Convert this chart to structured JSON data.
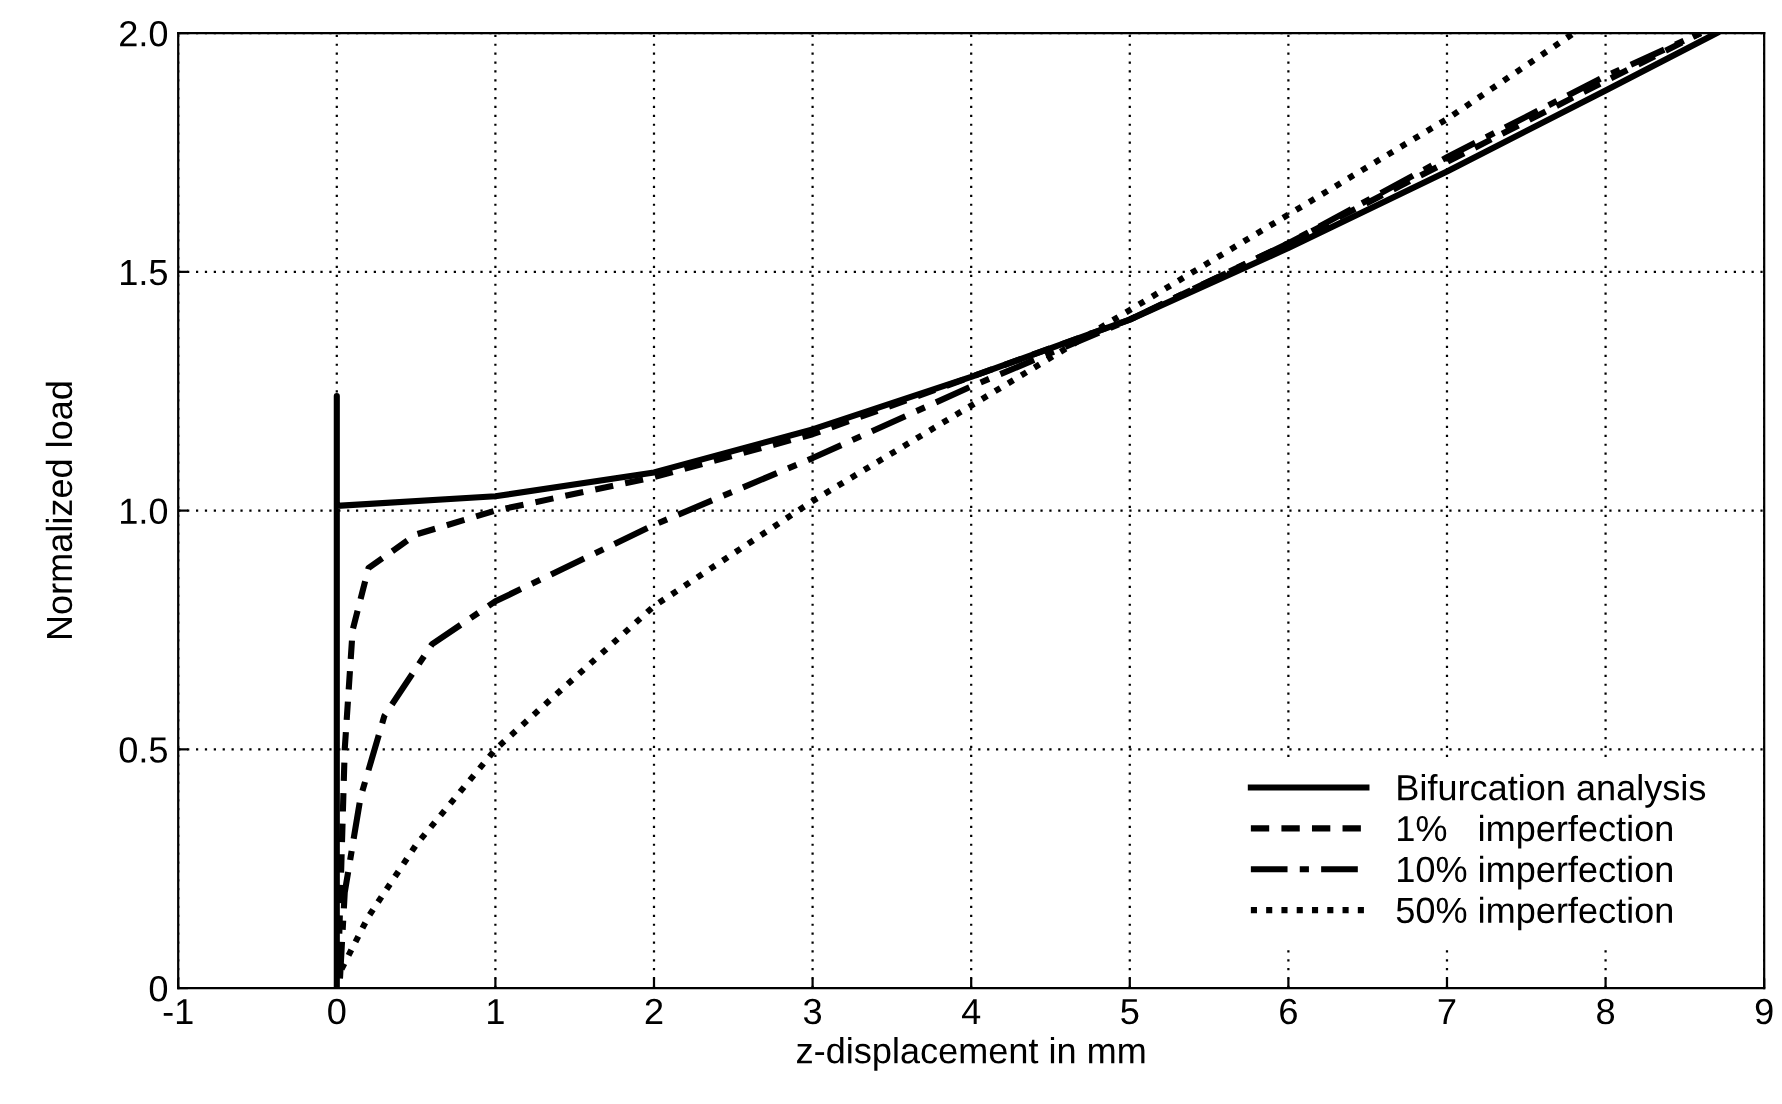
{
  "chart_data": {
    "type": "line",
    "xlabel": "z-displacement in mm",
    "ylabel": "Normalized load",
    "xlim": [
      -1,
      9
    ],
    "xticks": [
      -1,
      0,
      1,
      2,
      3,
      4,
      5,
      6,
      7,
      8,
      9
    ],
    "ylim": [
      0,
      2.0
    ],
    "yticks": [
      {
        "value": 0,
        "label": "0"
      },
      {
        "value": 0.5,
        "label": "0.5"
      },
      {
        "value": 1.0,
        "label": "1.0"
      },
      {
        "value": 1.5,
        "label": "1.5"
      },
      {
        "value": 2.0,
        "label": "2.0"
      }
    ],
    "grid": true,
    "legend": "bottom right",
    "marker": "none",
    "series": [
      {
        "name": "Bifurcation analysis",
        "color": "#000000",
        "line_style": "solid",
        "x": [
          0,
          0,
          0,
          1,
          2,
          3,
          4,
          5,
          6,
          7,
          8,
          8.7
        ],
        "values": [
          0,
          1.24,
          1.01,
          1.03,
          1.08,
          1.17,
          1.28,
          1.4,
          1.55,
          1.71,
          1.88,
          2.0
        ]
      },
      {
        "name": "1%   imperfection",
        "color": "#000000",
        "line_style": "dashed",
        "x": [
          0.01,
          0.05,
          0.1,
          0.2,
          0.5,
          1,
          2,
          3,
          4,
          5,
          6,
          7,
          8,
          8.6
        ],
        "values": [
          0.05,
          0.5,
          0.75,
          0.88,
          0.95,
          1.0,
          1.07,
          1.16,
          1.28,
          1.4,
          1.56,
          1.73,
          1.9,
          2.0
        ]
      },
      {
        "name": "10% imperfection",
        "color": "#000000",
        "line_style": "dashdot",
        "x": [
          0.02,
          0.05,
          0.15,
          0.3,
          0.6,
          1,
          2,
          3,
          4,
          5,
          6,
          7,
          8,
          8.6
        ],
        "values": [
          0.02,
          0.2,
          0.4,
          0.57,
          0.72,
          0.81,
          0.97,
          1.11,
          1.26,
          1.4,
          1.56,
          1.74,
          1.91,
          2.0
        ]
      },
      {
        "name": "50% imperfection",
        "color": "#000000",
        "line_style": "dotted",
        "x": [
          0.03,
          0.2,
          0.5,
          1,
          2,
          3,
          4,
          5,
          6,
          7,
          7.8
        ],
        "values": [
          0.04,
          0.15,
          0.3,
          0.5,
          0.8,
          1.02,
          1.22,
          1.42,
          1.62,
          1.82,
          2.0
        ]
      }
    ]
  }
}
